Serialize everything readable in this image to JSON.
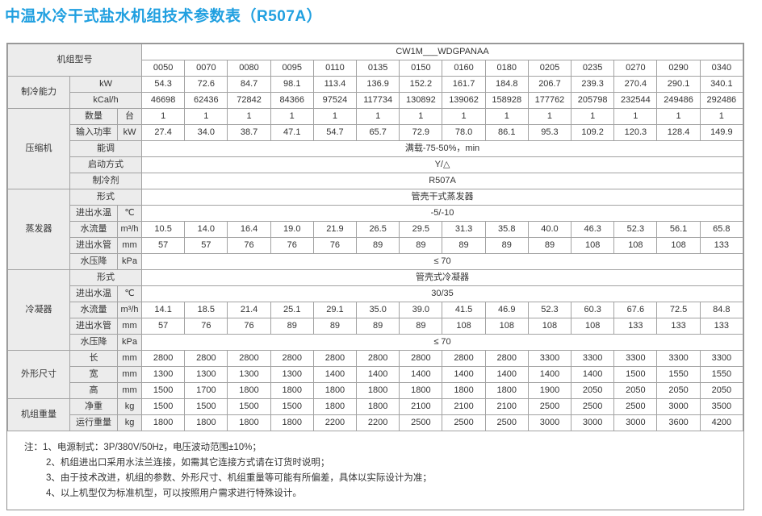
{
  "title": "中温水冷干式盐水机组技术参数表（R507A）",
  "table": {
    "corner_label": "机组型号",
    "series_name": "CW1M___WDGPANAA",
    "models": [
      "0050",
      "0070",
      "0080",
      "0095",
      "0110",
      "0135",
      "0150",
      "0160",
      "0180",
      "0205",
      "0235",
      "0270",
      "0290",
      "0340"
    ],
    "sections": [
      {
        "group": "制冷能力",
        "rows": [
          {
            "label": "kW",
            "unit": null,
            "values": [
              "54.3",
              "72.6",
              "84.7",
              "98.1",
              "113.4",
              "136.9",
              "152.2",
              "161.7",
              "184.8",
              "206.7",
              "239.3",
              "270.4",
              "290.1",
              "340.1"
            ]
          },
          {
            "label": "kCal/h",
            "unit": null,
            "values": [
              "46698",
              "62436",
              "72842",
              "84366",
              "97524",
              "117734",
              "130892",
              "139062",
              "158928",
              "177762",
              "205798",
              "232544",
              "249486",
              "292486"
            ]
          }
        ]
      },
      {
        "group": "压缩机",
        "rows": [
          {
            "label": "数量",
            "unit": "台",
            "values": [
              "1",
              "1",
              "1",
              "1",
              "1",
              "1",
              "1",
              "1",
              "1",
              "1",
              "1",
              "1",
              "1",
              "1"
            ]
          },
          {
            "label": "输入功率",
            "unit": "kW",
            "values": [
              "27.4",
              "34.0",
              "38.7",
              "47.1",
              "54.7",
              "65.7",
              "72.9",
              "78.0",
              "86.1",
              "95.3",
              "109.2",
              "120.3",
              "128.4",
              "149.9"
            ]
          },
          {
            "label": "能调",
            "unit": null,
            "span": "满载-75-50%，min"
          },
          {
            "label": "启动方式",
            "unit": null,
            "span": "Y/△"
          },
          {
            "label": "制冷剂",
            "unit": null,
            "span": "R507A"
          }
        ]
      },
      {
        "group": "蒸发器",
        "rows": [
          {
            "label": "形式",
            "unit": null,
            "span": "管壳干式蒸发器"
          },
          {
            "label": "进出水温",
            "unit": "℃",
            "span": "-5/-10"
          },
          {
            "label": "水流量",
            "unit": "m³/h",
            "values": [
              "10.5",
              "14.0",
              "16.4",
              "19.0",
              "21.9",
              "26.5",
              "29.5",
              "31.3",
              "35.8",
              "40.0",
              "46.3",
              "52.3",
              "56.1",
              "65.8"
            ]
          },
          {
            "label": "进出水管",
            "unit": "mm",
            "values": [
              "57",
              "57",
              "76",
              "76",
              "76",
              "89",
              "89",
              "89",
              "89",
              "89",
              "108",
              "108",
              "108",
              "133"
            ]
          },
          {
            "label": "水压降",
            "unit": "kPa",
            "span": "≤ 70"
          }
        ]
      },
      {
        "group": "冷凝器",
        "rows": [
          {
            "label": "形式",
            "unit": null,
            "span": "管壳式冷凝器"
          },
          {
            "label": "进出水温",
            "unit": "℃",
            "span": "30/35"
          },
          {
            "label": "水流量",
            "unit": "m³/h",
            "values": [
              "14.1",
              "18.5",
              "21.4",
              "25.1",
              "29.1",
              "35.0",
              "39.0",
              "41.5",
              "46.9",
              "52.3",
              "60.3",
              "67.6",
              "72.5",
              "84.8"
            ]
          },
          {
            "label": "进出水管",
            "unit": "mm",
            "values": [
              "57",
              "76",
              "76",
              "89",
              "89",
              "89",
              "89",
              "108",
              "108",
              "108",
              "108",
              "133",
              "133",
              "133"
            ]
          },
          {
            "label": "水压降",
            "unit": "kPa",
            "span": "≤ 70"
          }
        ]
      },
      {
        "group": "外形尺寸",
        "rows": [
          {
            "label": "长",
            "unit": "mm",
            "values": [
              "2800",
              "2800",
              "2800",
              "2800",
              "2800",
              "2800",
              "2800",
              "2800",
              "2800",
              "3300",
              "3300",
              "3300",
              "3300",
              "3300"
            ]
          },
          {
            "label": "宽",
            "unit": "mm",
            "values": [
              "1300",
              "1300",
              "1300",
              "1300",
              "1400",
              "1400",
              "1400",
              "1400",
              "1400",
              "1400",
              "1400",
              "1500",
              "1550",
              "1550"
            ]
          },
          {
            "label": "高",
            "unit": "mm",
            "values": [
              "1500",
              "1700",
              "1800",
              "1800",
              "1800",
              "1800",
              "1800",
              "1800",
              "1800",
              "1900",
              "2050",
              "2050",
              "2050",
              "2050"
            ]
          }
        ]
      },
      {
        "group": "机组重量",
        "rows": [
          {
            "label": "净重",
            "unit": "kg",
            "values": [
              "1500",
              "1500",
              "1500",
              "1500",
              "1800",
              "1800",
              "2100",
              "2100",
              "2100",
              "2500",
              "2500",
              "2500",
              "3000",
              "3500"
            ]
          },
          {
            "label": "运行重量",
            "unit": "kg",
            "values": [
              "1800",
              "1800",
              "1800",
              "1800",
              "2200",
              "2200",
              "2500",
              "2500",
              "2500",
              "3000",
              "3000",
              "3000",
              "3600",
              "4200"
            ]
          }
        ]
      }
    ]
  },
  "notes": {
    "prefix": "注：",
    "items": [
      "1、电源制式：3P/380V/50Hz，电压波动范围±10%；",
      "2、机组进出口采用水法兰连接，如需其它连接方式请在订货时说明；",
      "3、由于技术改进，机组的参数、外形尺寸、机组重量等可能有所偏差，具体以实际设计为准；",
      "4、以上机型仅为标准机型，可以按照用户需求进行特殊设计。"
    ]
  },
  "colors": {
    "title": "#21a0e0",
    "label_bg": "#ececec",
    "border": "#a2a2a2",
    "outer_border": "#8f8f8f",
    "text": "#333333"
  }
}
